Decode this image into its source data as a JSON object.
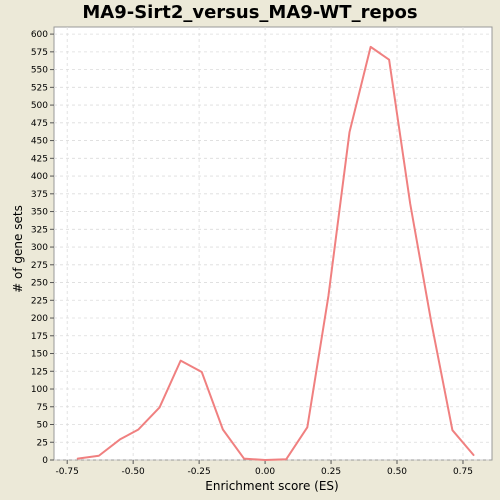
{
  "chart_data": {
    "type": "line",
    "title": "MA9-Sirt2_versus_MA9-WT_repos",
    "xlabel": "Enrichment score (ES)",
    "ylabel": "# of gene sets",
    "xlim": [
      -0.8,
      0.86
    ],
    "ylim": [
      0,
      610
    ],
    "xticks": [
      -0.75,
      -0.5,
      -0.25,
      0.0,
      0.25,
      0.5,
      0.75
    ],
    "xtick_labels": [
      "-0.75",
      "-0.50",
      "-0.25",
      "0.00",
      "0.25",
      "0.50",
      "0.75"
    ],
    "yticks": [
      0,
      25,
      50,
      75,
      100,
      125,
      150,
      175,
      200,
      225,
      250,
      275,
      300,
      325,
      350,
      375,
      400,
      425,
      450,
      475,
      500,
      525,
      550,
      575,
      600
    ],
    "grid": true,
    "series": [
      {
        "color": "#f08080",
        "x": [
          -0.71,
          -0.63,
          -0.55,
          -0.48,
          -0.4,
          -0.32,
          -0.24,
          -0.16,
          -0.08,
          0.0,
          0.08,
          0.16,
          0.24,
          0.32,
          0.4,
          0.47,
          0.55,
          0.63,
          0.71,
          0.79
        ],
        "y": [
          2,
          6,
          29,
          43,
          74,
          140,
          124,
          43,
          2,
          0,
          1,
          46,
          231,
          462,
          582,
          564,
          361,
          194,
          42,
          7
        ]
      }
    ]
  }
}
